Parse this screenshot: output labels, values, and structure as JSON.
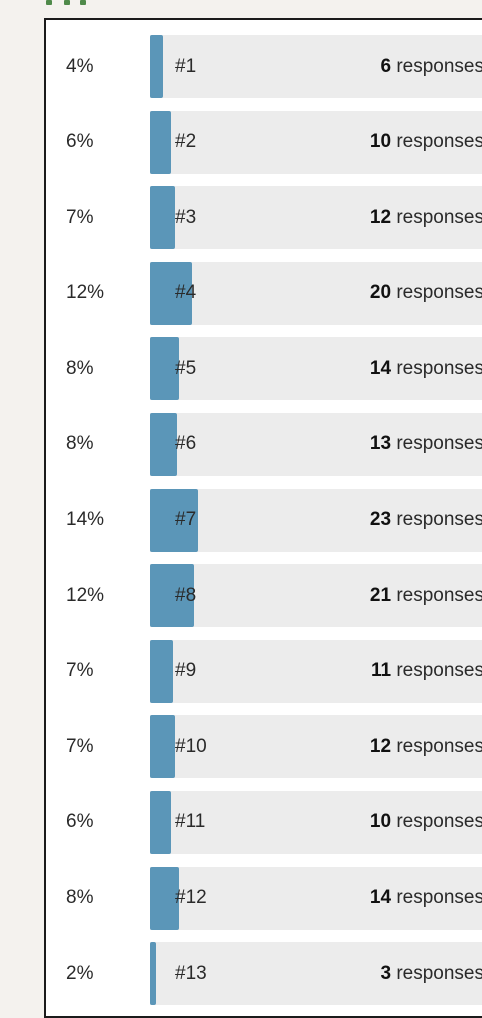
{
  "chart_data": {
    "type": "bar",
    "orientation": "horizontal",
    "unit_label": "responses",
    "bar_color": "#5b96b8",
    "track_color": "#ececec",
    "rows": [
      {
        "label": "#1",
        "percent": "4%",
        "count": 6
      },
      {
        "label": "#2",
        "percent": "6%",
        "count": 10
      },
      {
        "label": "#3",
        "percent": "7%",
        "count": 12
      },
      {
        "label": "#4",
        "percent": "12%",
        "count": 20
      },
      {
        "label": "#5",
        "percent": "8%",
        "count": 14
      },
      {
        "label": "#6",
        "percent": "8%",
        "count": 13
      },
      {
        "label": "#7",
        "percent": "14%",
        "count": 23
      },
      {
        "label": "#8",
        "percent": "12%",
        "count": 21
      },
      {
        "label": "#9",
        "percent": "7%",
        "count": 11
      },
      {
        "label": "#10",
        "percent": "7%",
        "count": 12
      },
      {
        "label": "#11",
        "percent": "6%",
        "count": 10
      },
      {
        "label": "#12",
        "percent": "8%",
        "count": 14
      },
      {
        "label": "#13",
        "percent": "2%",
        "count": 3
      }
    ]
  }
}
